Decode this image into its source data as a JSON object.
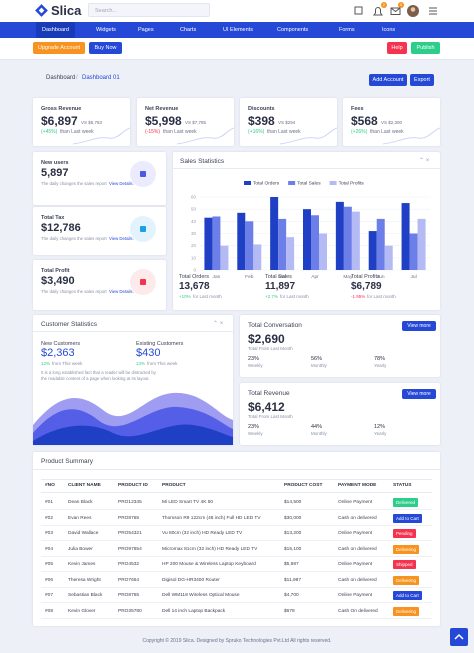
{
  "header": {
    "brand": "Slica",
    "search": "Search...",
    "badges": [
      "2",
      "5"
    ]
  },
  "nav": [
    "Dashboard",
    "Widgets",
    "Pages",
    "Charts",
    "UI Elements",
    "Components",
    "Forms",
    "Icons"
  ],
  "actions": {
    "left": [
      "Upgrade Account",
      "Buy Now"
    ],
    "right": [
      "Help",
      "Publish"
    ]
  },
  "breadcrumb": {
    "items": [
      "Dashboard",
      "Dashboard 01"
    ],
    "buttons": [
      "Add Account",
      "Export"
    ]
  },
  "stat_cards": [
    {
      "title": "Gross Revenue",
      "value": "$6,897",
      "compare": "VS $5,783",
      "change": "(+45%)",
      "change_text": "than Last week",
      "change_color": "#2dce89"
    },
    {
      "title": "Net Revenue",
      "value": "$5,998",
      "compare": "VS $7,785",
      "change": "(-15%)",
      "change_text": "than Last week",
      "change_color": "#f5334f"
    },
    {
      "title": "Discounts",
      "value": "$398",
      "compare": "VS $294",
      "change": "(+16%)",
      "change_text": "than Last week",
      "change_color": "#2dce89"
    },
    {
      "title": "Fees",
      "value": "$568",
      "compare": "VS $2,300",
      "change": "(+26%)",
      "change_text": "than Last week",
      "change_color": "#2dce89"
    }
  ],
  "mini_cards": [
    {
      "title": "New users",
      "value": "5,897",
      "text": "The daily changes the sales report",
      "link": "View Details."
    },
    {
      "title": "Total Tax",
      "value": "$12,786",
      "text": "The daily changes the sales report",
      "link": "View Details."
    },
    {
      "title": "Total Profit",
      "value": "$3,490",
      "text": "The daily changes the sales report",
      "link": "View Details."
    }
  ],
  "sales_statistics": {
    "title": "Sales Statistics",
    "chart": {
      "type": "bar",
      "categories": [
        "Jan",
        "Feb",
        "Mar",
        "Apr",
        "May",
        "Jun",
        "Jul"
      ],
      "series": [
        {
          "name": "Total Orders",
          "color": "#1f3fc4",
          "values": [
            43,
            47,
            60,
            50,
            56,
            32,
            55
          ]
        },
        {
          "name": "Total Sales",
          "color": "#6c7ee8",
          "values": [
            44,
            40,
            42,
            45,
            52,
            42,
            30
          ]
        },
        {
          "name": "Total Profits",
          "color": "#b4baf3",
          "values": [
            20,
            21,
            27,
            30,
            48,
            20,
            42
          ]
        }
      ],
      "ylim": [
        0,
        60
      ],
      "yticks": [
        0,
        10,
        20,
        30,
        40,
        50,
        60
      ],
      "grid": true
    },
    "summary": [
      {
        "label": "Total Orders",
        "value": "13,678",
        "change": "+10%",
        "change_text": "for Last month",
        "color": "#2dce89"
      },
      {
        "label": "Total Sales",
        "value": "11,897",
        "change": "+2.7%",
        "change_text": "for Last month",
        "color": "#2dce89"
      },
      {
        "label": "Total Profits",
        "value": "$6,789",
        "change": "-1.95%",
        "change_text": "for Last month",
        "color": "#f5334f"
      }
    ]
  },
  "customer_statistics": {
    "title": "Customer Statistics",
    "items": [
      {
        "label": "New Customers",
        "value": "$2,363",
        "change": "12%",
        "change_text": "from This week"
      },
      {
        "label": "Existing Customers",
        "value": "$430",
        "change": "13%",
        "change_text": "from This week"
      }
    ],
    "text": "It is a long established fact that a reader will be distracted by the readable content of a page when looking at its layout."
  },
  "panels": [
    {
      "title": "Total Conversation",
      "value": "$2,690",
      "sub": "Total From Last Month",
      "button": "View more",
      "stats": [
        {
          "value": "23%",
          "label": "Weekly"
        },
        {
          "value": "56%",
          "label": "Monthly"
        },
        {
          "value": "78%",
          "label": "Yearly"
        }
      ]
    },
    {
      "title": "Total Revenue",
      "value": "$6,412",
      "sub": "Total From Last Month",
      "button": "View more",
      "stats": [
        {
          "value": "23%",
          "label": "Weekly"
        },
        {
          "value": "44%",
          "label": "Monthly"
        },
        {
          "value": "12%",
          "label": "Yearly"
        }
      ]
    }
  ],
  "table": {
    "title": "Product Summary",
    "columns": [
      "#NO",
      "CLIENT NAME",
      "PRODUCT ID",
      "PRODUCT",
      "PRODUCT COST",
      "PAYMENT MODE",
      "STATUS"
    ],
    "rows": [
      [
        "#01",
        "Dean Black",
        "PRO12345",
        "Mi LED Smart TV 4K 50",
        "$14,500",
        "Online Payment",
        "Delivered"
      ],
      [
        "#02",
        "Evan Rees",
        "PRO8765",
        "Thomson R9 122cm (48 inch) Full HD LED TV",
        "$30,000",
        "Cash on delivered",
        "Add to Cart"
      ],
      [
        "#03",
        "David Wallace",
        "PRO54321",
        "Vu 80cm (32 inch) HD Ready LED TV",
        "$13,200",
        "Online Payment",
        "Pending"
      ],
      [
        "#04",
        "Julia Bower",
        "PRO97654",
        "Micromax 81cm (32 inch) HD Ready LED TV",
        "$15,100",
        "Cash on delivered",
        "Delivering"
      ],
      [
        "#05",
        "Kevin James",
        "PRO4532",
        "HP 200 Mouse & Wireless Laptop Keyboard",
        "$5,987",
        "Online Payment",
        "Shipped"
      ],
      [
        "#06",
        "Theresa Wright",
        "PRO7654",
        "Digisol DG-HR3400 Router",
        "$11,987",
        "Cash on delivered",
        "Delivering"
      ],
      [
        "#07",
        "Sebastian Black",
        "PRO8765",
        "Dell WM118 Wireless Optical Mouse",
        "$4,700",
        "Online Payment",
        "Add to Cart"
      ],
      [
        "#08",
        "Kevin Glover",
        "PRO35780",
        "Dell 14 inch Laptop Backpack",
        "$678",
        "Cash On delivered",
        "Delivering"
      ]
    ],
    "status_colors": [
      "#2dce89",
      "#2549d6",
      "#f5334f",
      "#f7931e",
      "#f5334f",
      "#f7931e",
      "#2549d6",
      "#f7931e"
    ]
  },
  "footer": "Copyright © 2019 Slica. Designed by Spruko Technologies Pvt.Ltd All rights reserved."
}
